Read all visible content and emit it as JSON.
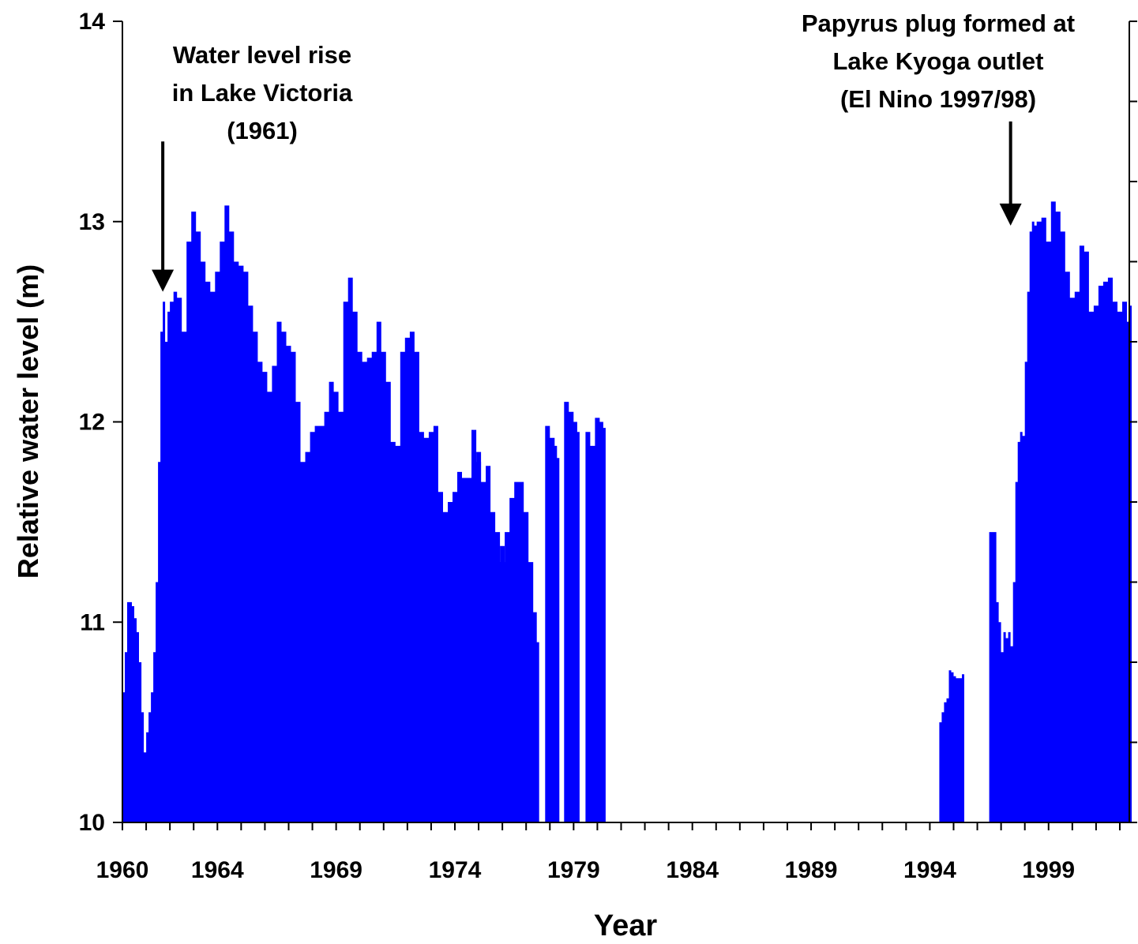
{
  "chart_data": {
    "type": "area",
    "title": "",
    "xlabel": "Year",
    "ylabel": "Relative water level (m)",
    "ylim": [
      10,
      14
    ],
    "xlim": [
      1960,
      2002.4
    ],
    "y_ticks": [
      "10",
      "11",
      "12",
      "13",
      "14"
    ],
    "x_ticks": [
      {
        "label": "1960",
        "value": 1960
      },
      {
        "label": "1964",
        "value": 1964
      },
      {
        "label": "1969",
        "value": 1969
      },
      {
        "label": "1974",
        "value": 1974
      },
      {
        "label": "1979",
        "value": 1979
      },
      {
        "label": "1984",
        "value": 1984
      },
      {
        "label": "1989",
        "value": 1989
      },
      {
        "label": "1994",
        "value": 1994
      },
      {
        "label": "1999",
        "value": 1999
      }
    ],
    "fill_color": "#0000ff",
    "grid": false,
    "annotations": [
      {
        "lines": [
          "Water level rise",
          "in Lake Victoria",
          "(1961)"
        ],
        "arrow_year": 1961.7,
        "arrow_y_top": 13.4,
        "arrow_y_bottom": 12.65
      },
      {
        "lines": [
          "Papyrus plug formed at",
          "Lake Kyoga outlet",
          "(El Nino 1997/98)"
        ],
        "arrow_year": 1997.4,
        "arrow_y_top": 13.5,
        "arrow_y_bottom": 12.98
      }
    ],
    "series": [
      {
        "segments": [
          {
            "x": [
              1960.0,
              1960.1,
              1960.2,
              1960.3,
              1960.4,
              1960.5,
              1960.6,
              1960.7,
              1960.8,
              1960.9,
              1961.0,
              1961.1,
              1961.2,
              1961.3,
              1961.4,
              1961.5,
              1961.6,
              1961.7,
              1961.8,
              1961.9,
              1962.0,
              1962.15,
              1962.3,
              1962.5,
              1962.7,
              1962.9,
              1963.1,
              1963.3,
              1963.5,
              1963.7,
              1963.9,
              1964.1,
              1964.3,
              1964.5,
              1964.7,
              1964.9,
              1965.1,
              1965.3,
              1965.5,
              1965.7,
              1965.9,
              1966.1,
              1966.3,
              1966.5,
              1966.7,
              1966.9,
              1967.1,
              1967.3,
              1967.5,
              1967.7,
              1967.9,
              1968.1,
              1968.3,
              1968.5,
              1968.7,
              1968.9,
              1969.1,
              1969.3,
              1969.5,
              1969.7,
              1969.9,
              1970.1,
              1970.3,
              1970.5,
              1970.7,
              1970.9,
              1971.1,
              1971.3,
              1971.5,
              1971.7,
              1971.9,
              1972.1,
              1972.3,
              1972.5,
              1972.7,
              1972.9,
              1973.1,
              1973.3,
              1973.5,
              1973.7,
              1973.9,
              1974.1,
              1974.3,
              1974.5,
              1974.7,
              1974.9,
              1975.1,
              1975.3,
              1975.5,
              1975.7,
              1975.9,
              1976.1,
              1976.3,
              1976.5,
              1976.7,
              1976.9,
              1977.1,
              1977.3,
              1977.45
            ],
            "y": [
              10.65,
              10.85,
              11.1,
              11.1,
              11.08,
              11.02,
              10.95,
              10.8,
              10.55,
              10.35,
              10.45,
              10.55,
              10.65,
              10.85,
              11.2,
              11.8,
              12.45,
              12.6,
              12.4,
              12.55,
              12.6,
              12.65,
              12.62,
              12.45,
              12.9,
              13.05,
              12.95,
              12.8,
              12.7,
              12.65,
              12.75,
              12.9,
              13.08,
              12.95,
              12.8,
              12.78,
              12.75,
              12.58,
              12.45,
              12.3,
              12.25,
              12.15,
              12.28,
              12.5,
              12.45,
              12.38,
              12.35,
              12.1,
              11.8,
              11.85,
              11.95,
              11.98,
              11.98,
              12.05,
              12.2,
              12.15,
              12.05,
              12.6,
              12.72,
              12.55,
              12.35,
              12.3,
              12.32,
              12.35,
              12.5,
              12.35,
              12.2,
              11.9,
              11.88,
              12.35,
              12.42,
              12.45,
              12.35,
              11.95,
              11.92,
              11.95,
              11.98,
              11.65,
              11.55,
              11.6,
              11.65,
              11.75,
              11.72,
              11.72,
              11.75,
              11.85,
              11.7,
              11.78,
              11.55,
              11.45,
              11.3,
              11.45,
              11.62,
              11.7,
              11.7,
              11.55,
              11.3,
              11.05,
              10.9
            ]
          },
          {
            "x": [
              1974.5,
              1974.7,
              1974.9,
              1975.1,
              1975.3,
              1975.5,
              1975.7,
              1975.9,
              1976.1,
              1976.3,
              1976.5,
              1976.75
            ],
            "y": [
              11.6,
              11.96,
              11.8,
              11.45,
              11.35,
              11.3,
              11.3,
              11.38,
              11.25,
              11.1,
              11.05,
              11.0
            ]
          },
          {
            "x": [
              1977.8,
              1978.0,
              1978.2,
              1978.3
            ],
            "y": [
              11.98,
              11.92,
              11.88,
              11.82
            ]
          },
          {
            "x": [
              1978.6,
              1978.8,
              1979.0,
              1979.15
            ],
            "y": [
              12.1,
              12.05,
              12.0,
              11.95
            ]
          },
          {
            "x": [
              1979.5,
              1979.7,
              1979.9,
              1980.1,
              1980.25
            ],
            "y": [
              11.95,
              11.88,
              12.02,
              12.0,
              11.97
            ]
          }
        ]
      },
      {
        "segments": [
          {
            "x": [
              1994.4,
              1994.5,
              1994.6,
              1994.7,
              1994.8,
              1994.9,
              1995.0,
              1995.1,
              1995.2,
              1995.35
            ],
            "y": [
              10.5,
              10.55,
              10.6,
              10.62,
              10.76,
              10.75,
              10.73,
              10.72,
              10.72,
              10.74
            ]
          },
          {
            "x": [
              1996.5,
              1996.7,
              1996.8,
              1996.9,
              1997.0,
              1997.1,
              1997.2,
              1997.3,
              1997.4,
              1997.5,
              1997.6,
              1997.7,
              1997.8,
              1997.9,
              1998.0,
              1998.1,
              1998.2,
              1998.3,
              1998.4,
              1998.5,
              1998.7,
              1998.9,
              1999.1,
              1999.3,
              1999.5,
              1999.7,
              1999.9,
              2000.1,
              2000.3,
              2000.5,
              2000.7,
              2000.9,
              2001.1,
              2001.3,
              2001.5,
              2001.7,
              2001.9,
              2002.1,
              2002.3,
              2002.4
            ],
            "y": [
              11.45,
              11.45,
              11.1,
              11.0,
              10.85,
              10.95,
              10.92,
              10.95,
              10.88,
              11.2,
              11.7,
              11.9,
              11.95,
              11.93,
              12.3,
              12.65,
              12.95,
              13.0,
              12.98,
              13.0,
              13.02,
              12.9,
              13.1,
              13.05,
              12.95,
              12.75,
              12.62,
              12.65,
              12.88,
              12.85,
              12.55,
              12.58,
              12.68,
              12.7,
              12.72,
              12.6,
              12.55,
              12.6,
              12.5,
              12.58
            ]
          }
        ]
      }
    ]
  }
}
